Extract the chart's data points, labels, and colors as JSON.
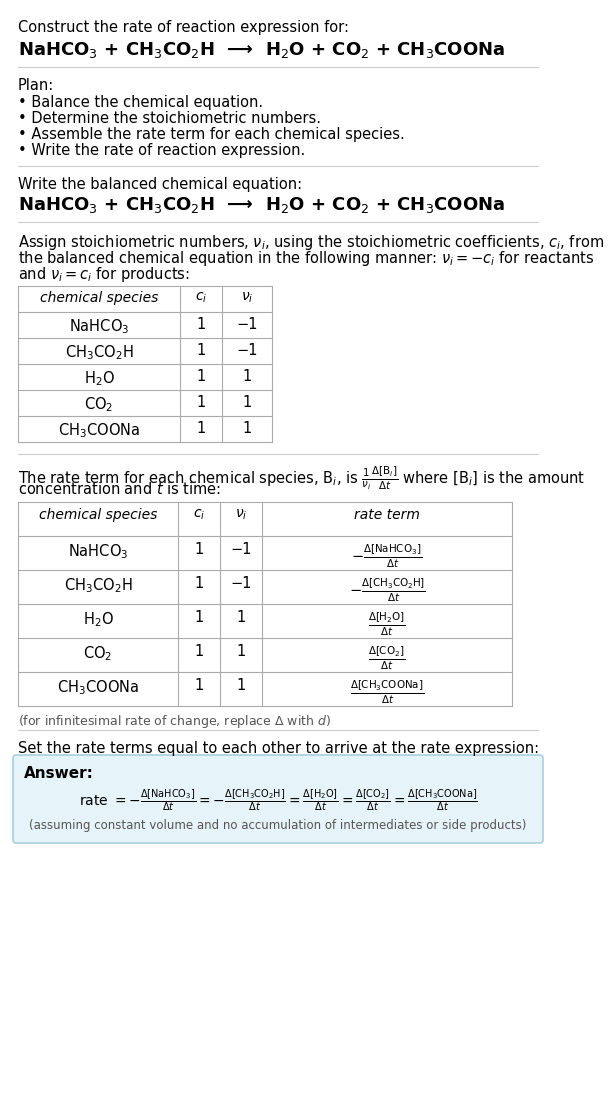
{
  "title_line1": "Construct the rate of reaction expression for:",
  "reaction_eq": "NaHCO$_3$ + CH$_3$CO$_2$H  ⟶  H$_2$O + CO$_2$ + CH$_3$COONa",
  "plan_header": "Plan:",
  "plan_items": [
    "• Balance the chemical equation.",
    "• Determine the stoichiometric numbers.",
    "• Assemble the rate term for each chemical species.",
    "• Write the rate of reaction expression."
  ],
  "balanced_header": "Write the balanced chemical equation:",
  "balanced_eq": "NaHCO$_3$ + CH$_3$CO$_2$H  ⟶  H$_2$O + CO$_2$ + CH$_3$COONa",
  "stoich_lines": [
    "Assign stoichiometric numbers, $\\nu_i$, using the stoichiometric coefficients, $c_i$, from",
    "the balanced chemical equation in the following manner: $\\nu_i = -c_i$ for reactants",
    "and $\\nu_i = c_i$ for products:"
  ],
  "table1_col_headers": [
    "chemical species",
    "$c_i$",
    "$\\nu_i$"
  ],
  "table1_rows": [
    [
      "NaHCO$_3$",
      "1",
      "−1"
    ],
    [
      "CH$_3$CO$_2$H",
      "1",
      "−1"
    ],
    [
      "H$_2$O",
      "1",
      "1"
    ],
    [
      "CO$_2$",
      "1",
      "1"
    ],
    [
      "CH$_3$COONa",
      "1",
      "1"
    ]
  ],
  "rate_lines": [
    "The rate term for each chemical species, B$_i$, is $\\frac{1}{\\nu_i}\\frac{\\Delta[\\mathrm{B}_i]}{\\Delta t}$ where [B$_i$] is the amount",
    "concentration and $t$ is time:"
  ],
  "table2_col_headers": [
    "chemical species",
    "$c_i$",
    "$\\nu_i$",
    "rate term"
  ],
  "table2_rows": [
    [
      "NaHCO$_3$",
      "1",
      "−1",
      "$-\\frac{\\Delta[\\mathrm{NaHCO_3}]}{\\Delta t}$"
    ],
    [
      "CH$_3$CO$_2$H",
      "1",
      "−1",
      "$-\\frac{\\Delta[\\mathrm{CH_3CO_2H}]}{\\Delta t}$"
    ],
    [
      "H$_2$O",
      "1",
      "1",
      "$\\frac{\\Delta[\\mathrm{H_2O}]}{\\Delta t}$"
    ],
    [
      "CO$_2$",
      "1",
      "1",
      "$\\frac{\\Delta[\\mathrm{CO_2}]}{\\Delta t}$"
    ],
    [
      "CH$_3$COONa",
      "1",
      "1",
      "$\\frac{\\Delta[\\mathrm{CH_3COONa}]}{\\Delta t}$"
    ]
  ],
  "footnote": "(for infinitesimal rate of change, replace Δ with $d$)",
  "final_header": "Set the rate terms equal to each other to arrive at the rate expression:",
  "answer_label": "Answer:",
  "rate_expr_parts": [
    "rate $= -\\frac{\\Delta[\\mathrm{NaHCO_3}]}{\\Delta t} = -\\frac{\\Delta[\\mathrm{CH_3CO_2H}]}{\\Delta t} = \\frac{\\Delta[\\mathrm{H_2O}]}{\\Delta t} = \\frac{\\Delta[\\mathrm{CO_2}]}{\\Delta t} = \\frac{\\Delta[\\mathrm{CH_3COONa}]}{\\Delta t}$"
  ],
  "assumption": "(assuming constant volume and no accumulation of intermediates or side products)",
  "bg_color": "#ffffff",
  "answer_bg": "#e6f3f8",
  "answer_border": "#a8cfe0",
  "border_color": "#aaaaaa",
  "sep_color": "#cccccc"
}
